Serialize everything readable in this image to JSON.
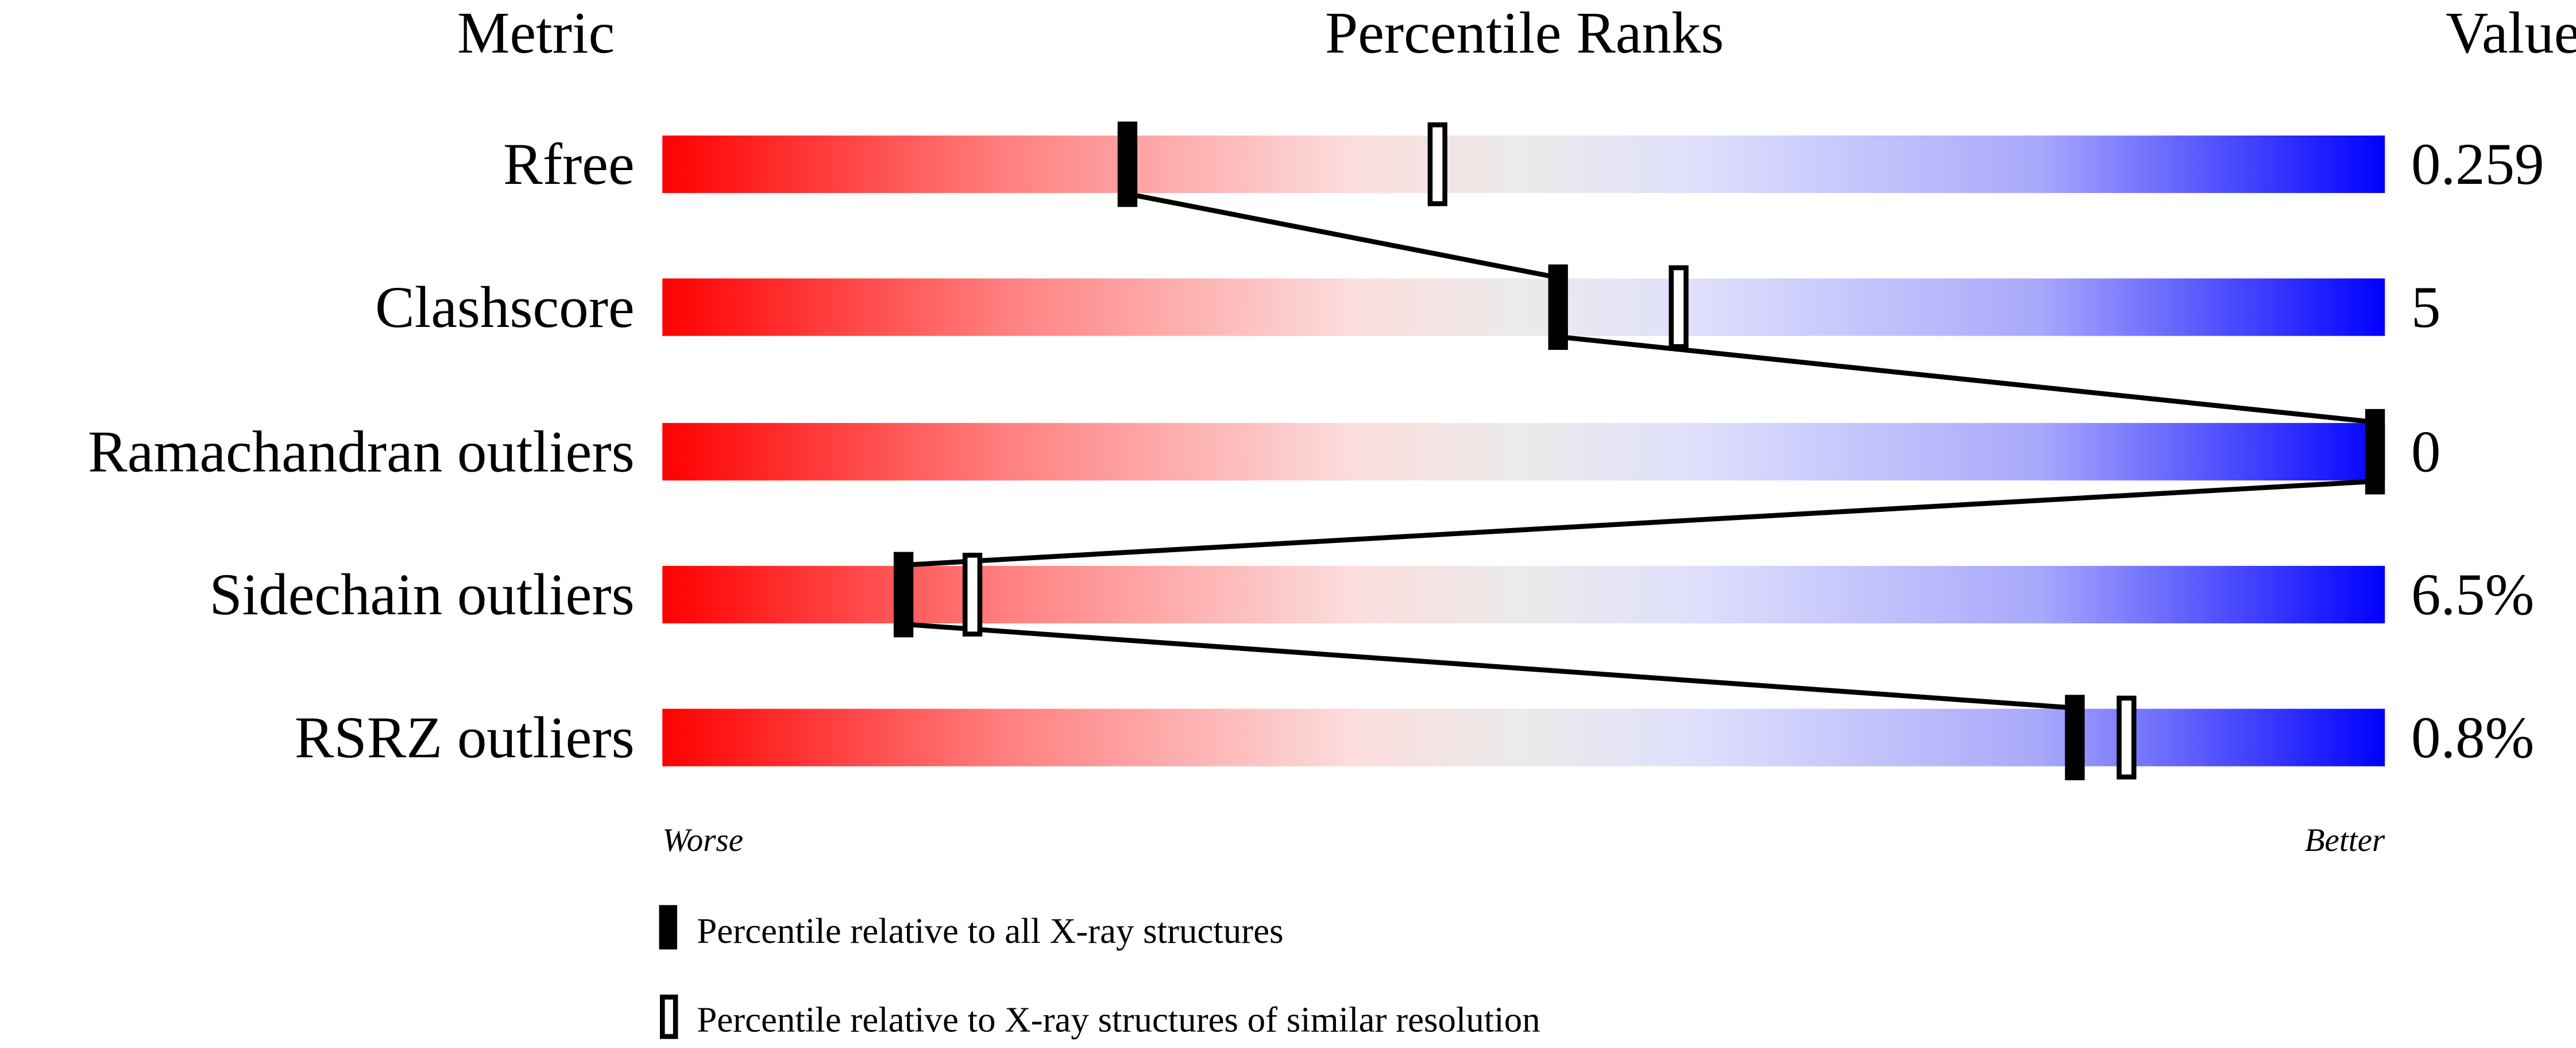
{
  "chart_data": {
    "type": "percentile-ranks",
    "headers": {
      "metric": "Metric",
      "ranks": "Percentile Ranks",
      "value": "Value"
    },
    "xlim": [
      0,
      100
    ],
    "gradient_colors": [
      "#ff0000",
      "#ebebeb",
      "#0000ff"
    ],
    "metrics": [
      {
        "name": "Rfree",
        "value": "0.259",
        "percentile_all": 27,
        "percentile_similar": 45
      },
      {
        "name": "Clashscore",
        "value": "5",
        "percentile_all": 52,
        "percentile_similar": 59
      },
      {
        "name": "Ramachandran outliers",
        "value": "0",
        "percentile_all": 100,
        "percentile_similar": 100
      },
      {
        "name": "Sidechain outliers",
        "value": "6.5%",
        "percentile_all": 14,
        "percentile_similar": 18
      },
      {
        "name": "RSRZ outliers",
        "value": "0.8%",
        "percentile_all": 82,
        "percentile_similar": 85
      }
    ],
    "axis_labels": {
      "left": "Worse",
      "right": "Better"
    },
    "legend": [
      {
        "marker": "filled",
        "label": "Percentile relative to all X-ray structures"
      },
      {
        "marker": "open",
        "label": "Percentile relative to X-ray structures of similar resolution"
      }
    ]
  }
}
